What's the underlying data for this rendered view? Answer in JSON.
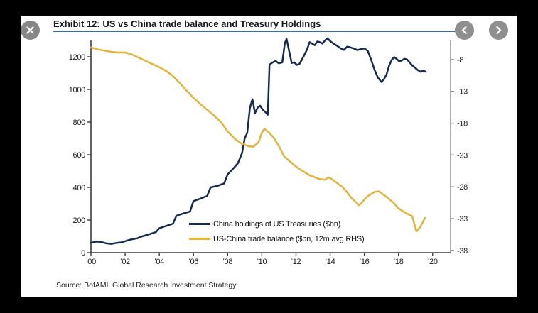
{
  "stage": {
    "background": "#000000",
    "card_background": "#ffffff"
  },
  "header": {
    "title": "Exhibit 12: US vs China trade balance and Treasury Holdings",
    "underline_color": "#41699f"
  },
  "controls": {
    "button_color": "#8f8f8f",
    "close": {
      "icon": "close-icon"
    },
    "prev": {
      "icon": "chevron-left-icon"
    },
    "next": {
      "icon": "chevron-right-icon"
    }
  },
  "footer": {
    "source": "Source: BofAML Global Research Investment Strategy"
  },
  "chart_data": {
    "type": "line",
    "title": "Exhibit 12: US vs China trade balance and Treasury Holdings",
    "grid": false,
    "legend_position": "inside-bottom-center",
    "axis_color": "#3c3c3c",
    "right_axis_color": "#8a8a8a",
    "tick_label_color": "#1a1a1a",
    "x_axis": {
      "range": [
        2000,
        2021.05
      ],
      "ticks": [
        2000,
        2002,
        2004,
        2006,
        2008,
        2010,
        2012,
        2014,
        2016,
        2018,
        2020
      ],
      "tick_labels": [
        "’00",
        "’02",
        "’04",
        "’06",
        "’08",
        "’10",
        "’12",
        "’14",
        "’16",
        "’18",
        "’20"
      ]
    },
    "left_axis": {
      "min": 0,
      "max": 1300,
      "ticks": [
        0,
        200,
        400,
        600,
        800,
        1000,
        1200
      ],
      "tick_labels": [
        "0",
        "200",
        "400",
        "600",
        "800",
        "1000",
        "1200"
      ]
    },
    "right_axis": {
      "min": -38.35,
      "max": -5,
      "ticks": [
        -8,
        -13,
        -18,
        -23,
        -28,
        -33,
        -38
      ],
      "tick_labels": [
        "-8",
        "-13",
        "-18",
        "-23",
        "-28",
        "-33",
        "-38"
      ]
    },
    "series": [
      {
        "name": "China holdings of US Treasuries ($bn)",
        "color": "#142a50",
        "axis": "left",
        "points": [
          [
            2000.0,
            60
          ],
          [
            2000.3,
            68
          ],
          [
            2000.6,
            66
          ],
          [
            2000.9,
            57
          ],
          [
            2001.2,
            54
          ],
          [
            2001.5,
            60
          ],
          [
            2001.8,
            63
          ],
          [
            2002.1,
            74
          ],
          [
            2002.4,
            82
          ],
          [
            2002.7,
            88
          ],
          [
            2003.0,
            100
          ],
          [
            2003.4,
            112
          ],
          [
            2003.8,
            126
          ],
          [
            2004.0,
            150
          ],
          [
            2004.4,
            164
          ],
          [
            2004.8,
            178
          ],
          [
            2005.0,
            226
          ],
          [
            2005.4,
            240
          ],
          [
            2005.8,
            252
          ],
          [
            2006.0,
            316
          ],
          [
            2006.4,
            331
          ],
          [
            2006.8,
            348
          ],
          [
            2007.0,
            400
          ],
          [
            2007.4,
            409
          ],
          [
            2007.8,
            425
          ],
          [
            2008.0,
            480
          ],
          [
            2008.3,
            512
          ],
          [
            2008.6,
            548
          ],
          [
            2008.85,
            612
          ],
          [
            2009.0,
            700
          ],
          [
            2009.15,
            735
          ],
          [
            2009.3,
            885
          ],
          [
            2009.45,
            940
          ],
          [
            2009.6,
            855
          ],
          [
            2009.75,
            888
          ],
          [
            2009.9,
            900
          ],
          [
            2010.05,
            876
          ],
          [
            2010.2,
            862
          ],
          [
            2010.35,
            845
          ],
          [
            2010.45,
            1152
          ],
          [
            2010.6,
            1163
          ],
          [
            2010.8,
            1175
          ],
          [
            2011.0,
            1160
          ],
          [
            2011.2,
            1166
          ],
          [
            2011.35,
            1284
          ],
          [
            2011.45,
            1310
          ],
          [
            2011.6,
            1236
          ],
          [
            2011.75,
            1162
          ],
          [
            2011.9,
            1166
          ],
          [
            2012.05,
            1150
          ],
          [
            2012.2,
            1156
          ],
          [
            2012.35,
            1184
          ],
          [
            2012.5,
            1214
          ],
          [
            2012.65,
            1246
          ],
          [
            2012.8,
            1290
          ],
          [
            2012.95,
            1280
          ],
          [
            2013.1,
            1271
          ],
          [
            2013.25,
            1294
          ],
          [
            2013.4,
            1289
          ],
          [
            2013.55,
            1281
          ],
          [
            2013.7,
            1300
          ],
          [
            2013.85,
            1313
          ],
          [
            2014.0,
            1296
          ],
          [
            2014.2,
            1281
          ],
          [
            2014.4,
            1268
          ],
          [
            2014.6,
            1252
          ],
          [
            2014.8,
            1242
          ],
          [
            2015.0,
            1262
          ],
          [
            2015.2,
            1257
          ],
          [
            2015.4,
            1250
          ],
          [
            2015.6,
            1241
          ],
          [
            2015.8,
            1248
          ],
          [
            2016.0,
            1251
          ],
          [
            2016.2,
            1237
          ],
          [
            2016.4,
            1182
          ],
          [
            2016.6,
            1120
          ],
          [
            2016.8,
            1072
          ],
          [
            2017.0,
            1046
          ],
          [
            2017.15,
            1062
          ],
          [
            2017.3,
            1092
          ],
          [
            2017.45,
            1146
          ],
          [
            2017.6,
            1180
          ],
          [
            2017.75,
            1198
          ],
          [
            2017.9,
            1186
          ],
          [
            2018.05,
            1172
          ],
          [
            2018.2,
            1178
          ],
          [
            2018.35,
            1188
          ],
          [
            2018.5,
            1184
          ],
          [
            2018.65,
            1166
          ],
          [
            2018.8,
            1148
          ],
          [
            2019.0,
            1130
          ],
          [
            2019.15,
            1117
          ],
          [
            2019.3,
            1108
          ],
          [
            2019.45,
            1116
          ],
          [
            2019.6,
            1108
          ]
        ]
      },
      {
        "name": "US-China trade balance ($bn, 12m avg RHS)",
        "color": "#e6b23a",
        "axis": "right",
        "points": [
          [
            2000.0,
            -6.1
          ],
          [
            2000.4,
            -6.4
          ],
          [
            2000.8,
            -6.6
          ],
          [
            2001.2,
            -6.8
          ],
          [
            2001.6,
            -6.9
          ],
          [
            2002.0,
            -6.9
          ],
          [
            2002.4,
            -7.2
          ],
          [
            2002.8,
            -7.7
          ],
          [
            2003.2,
            -8.2
          ],
          [
            2003.6,
            -8.7
          ],
          [
            2004.0,
            -9.2
          ],
          [
            2004.4,
            -9.8
          ],
          [
            2004.8,
            -10.6
          ],
          [
            2005.2,
            -11.7
          ],
          [
            2005.6,
            -12.9
          ],
          [
            2006.0,
            -14.0
          ],
          [
            2006.4,
            -15.0
          ],
          [
            2006.8,
            -15.9
          ],
          [
            2007.2,
            -16.8
          ],
          [
            2007.6,
            -17.8
          ],
          [
            2008.0,
            -19.3
          ],
          [
            2008.4,
            -20.4
          ],
          [
            2008.8,
            -21.2
          ],
          [
            2009.2,
            -21.6
          ],
          [
            2009.5,
            -21.7
          ],
          [
            2009.8,
            -21.0
          ],
          [
            2010.0,
            -19.5
          ],
          [
            2010.15,
            -18.9
          ],
          [
            2010.4,
            -19.4
          ],
          [
            2010.7,
            -20.3
          ],
          [
            2011.0,
            -21.6
          ],
          [
            2011.3,
            -23.2
          ],
          [
            2011.6,
            -23.9
          ],
          [
            2011.9,
            -24.6
          ],
          [
            2012.2,
            -25.2
          ],
          [
            2012.5,
            -25.7
          ],
          [
            2012.8,
            -26.2
          ],
          [
            2013.1,
            -26.5
          ],
          [
            2013.4,
            -26.8
          ],
          [
            2013.7,
            -26.9
          ],
          [
            2013.9,
            -26.5
          ],
          [
            2014.1,
            -26.8
          ],
          [
            2014.4,
            -27.4
          ],
          [
            2014.7,
            -28.0
          ],
          [
            2014.95,
            -28.7
          ],
          [
            2015.2,
            -29.6
          ],
          [
            2015.45,
            -30.3
          ],
          [
            2015.7,
            -30.9
          ],
          [
            2015.85,
            -30.5
          ],
          [
            2016.1,
            -29.7
          ],
          [
            2016.35,
            -29.2
          ],
          [
            2016.6,
            -28.8
          ],
          [
            2016.85,
            -28.7
          ],
          [
            2017.1,
            -29.2
          ],
          [
            2017.4,
            -29.8
          ],
          [
            2017.7,
            -30.5
          ],
          [
            2018.0,
            -31.4
          ],
          [
            2018.3,
            -31.9
          ],
          [
            2018.55,
            -32.3
          ],
          [
            2018.8,
            -32.6
          ],
          [
            2019.05,
            -35.0
          ],
          [
            2019.25,
            -34.4
          ],
          [
            2019.4,
            -33.7
          ],
          [
            2019.55,
            -32.9
          ]
        ]
      }
    ]
  }
}
